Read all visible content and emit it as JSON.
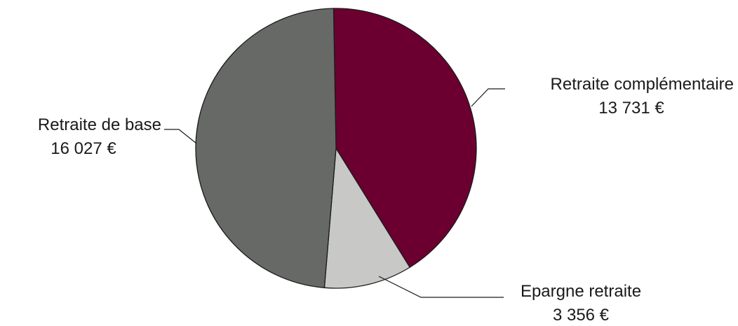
{
  "chart_data": {
    "type": "pie",
    "start_angle_deg": -1,
    "direction": "clockwise",
    "slices": [
      {
        "label": "Retraite complémentaire",
        "value_text": "13 731 €",
        "value": 13731,
        "color": "#6b0030"
      },
      {
        "label": "Epargne retraite",
        "value_text": "3 356 €",
        "value": 3356,
        "color": "#c8c8c6"
      },
      {
        "label": "Retraite de base",
        "value_text": "16 027 €",
        "value": 16027,
        "color": "#676967"
      }
    ]
  }
}
